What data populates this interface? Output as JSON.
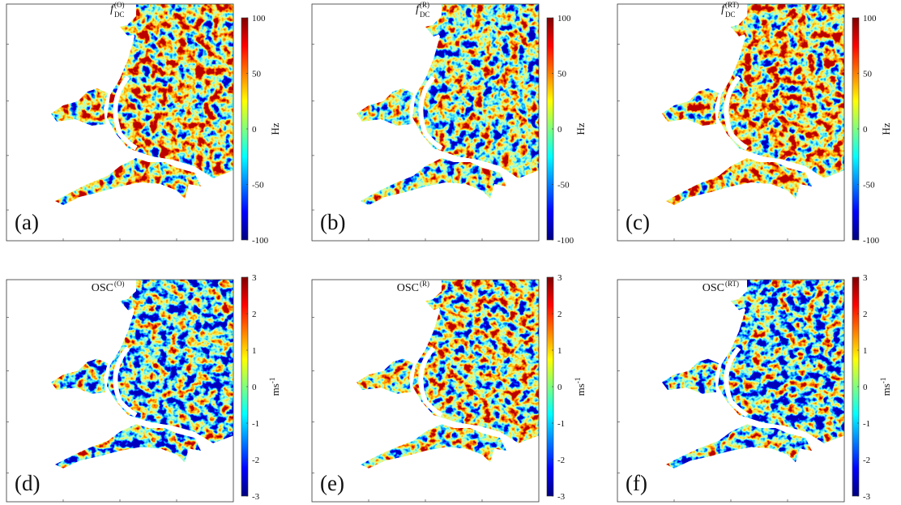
{
  "panels": [
    {
      "title": {
        "base": "f",
        "sub": "DC",
        "sup": "(O)"
      },
      "label": "(a)",
      "colorbar": {
        "lim": [
          -100,
          100
        ],
        "ticks": [
          -100,
          -50,
          0,
          50,
          100
        ],
        "unit": {
          "base": "Hz"
        }
      }
    },
    {
      "title": {
        "base": "f",
        "sub": "DC",
        "sup": "(R)"
      },
      "label": "(b)",
      "colorbar": {
        "lim": [
          -100,
          100
        ],
        "ticks": [
          -100,
          -50,
          0,
          50,
          100
        ],
        "unit": {
          "base": "Hz"
        }
      }
    },
    {
      "title": {
        "base": "f",
        "sub": "DC",
        "sup": "(RT)"
      },
      "label": "(c)",
      "colorbar": {
        "lim": [
          -100,
          100
        ],
        "ticks": [
          -100,
          -50,
          0,
          50,
          100
        ],
        "unit": {
          "base": "Hz"
        }
      }
    },
    {
      "title": {
        "base": "OSC",
        "sup": "(O)"
      },
      "label": "(d)",
      "colorbar": {
        "lim": [
          -3,
          3
        ],
        "ticks": [
          -3,
          -2,
          -1,
          0,
          1,
          2,
          3
        ],
        "unit": {
          "base": "ms",
          "sup": "-1"
        }
      }
    },
    {
      "title": {
        "base": "OSC",
        "sup": "(R)"
      },
      "label": "(e)",
      "colorbar": {
        "lim": [
          -3,
          3
        ],
        "ticks": [
          -3,
          -2,
          -1,
          0,
          1,
          2,
          3
        ],
        "unit": {
          "base": "ms",
          "sup": "-1"
        }
      }
    },
    {
      "title": {
        "base": "OSC",
        "sup": "(RT)"
      },
      "label": "(f)",
      "colorbar": {
        "lim": [
          -3,
          3
        ],
        "ticks": [
          -3,
          -2,
          -1,
          0,
          1,
          2,
          3
        ],
        "unit": {
          "base": "ms",
          "sup": "-1"
        }
      }
    }
  ]
}
